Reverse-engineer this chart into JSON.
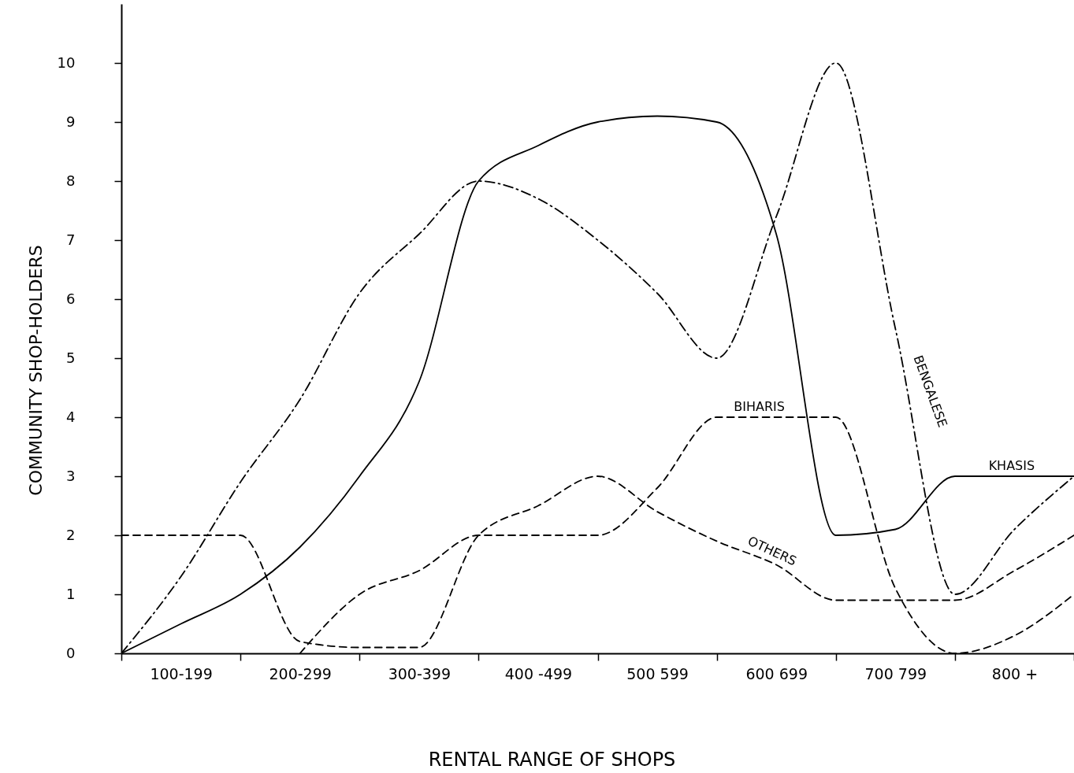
{
  "chart_data": {
    "type": "line",
    "xlabel": "RENTAL RANGE OF SHOPS",
    "ylabel": "COMMUNITY SHOP-HOLDERS",
    "categories": [
      null,
      "100-199",
      null,
      "200-299",
      null,
      "300-399",
      null,
      "400 -499",
      null,
      "500 599",
      null,
      "600 699",
      null,
      "700 799",
      null,
      "800 +",
      null
    ],
    "ylim": [
      0,
      11
    ],
    "yticks": [
      0,
      1,
      2,
      3,
      4,
      5,
      6,
      7,
      8,
      9,
      10
    ],
    "grid": false,
    "marker": "none",
    "series": [
      {
        "name": "KHASIS",
        "color": "#000000",
        "line_style": "solid",
        "values": [
          0,
          0.5,
          1,
          1.8,
          3,
          4.6,
          8,
          8.6,
          9,
          9.1,
          9,
          7.1,
          2,
          2.1,
          3,
          3,
          3
        ]
      },
      {
        "name": "BENGALESE",
        "color": "#000000",
        "line_style": "dashdot",
        "values": [
          0,
          1.3,
          2.9,
          4.3,
          6.1,
          7.1,
          8,
          7.7,
          7,
          6.1,
          5,
          7.4,
          10,
          5.5,
          1,
          2.1,
          3
        ]
      },
      {
        "name": "BIHARIS",
        "color": "#000000",
        "line_style": "dashed",
        "values": [
          null,
          null,
          null,
          0,
          1,
          1.4,
          2,
          2,
          2,
          2.8,
          4,
          4,
          4,
          1.1,
          0,
          0.3,
          1
        ]
      },
      {
        "name": "OTHERS",
        "color": "#000000",
        "line_style": "dashed",
        "values": [
          2,
          2,
          2,
          0.2,
          0.1,
          0.1,
          2,
          2.5,
          3,
          2.4,
          1.9,
          1.5,
          0.9,
          0.9,
          0.9,
          1.4,
          2
        ]
      }
    ]
  }
}
